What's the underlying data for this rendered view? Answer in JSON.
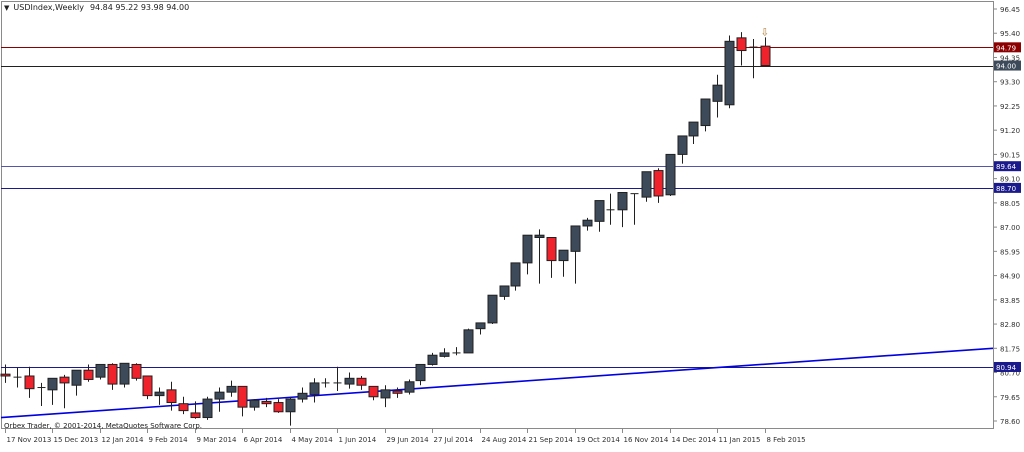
{
  "header": {
    "symbol": "USDIndex,Weekly",
    "ohlc": "94.84 95.22 93.98 94.00"
  },
  "footer": {
    "copyright": "Orbex Trader, © 2001-2014, MetaQuotes Software Corp."
  },
  "colors": {
    "bull_body": "#3d4a5a",
    "bear_body": "#f0232d",
    "wick": "#202020",
    "horizontal_blue": "#1a1a8c",
    "horizontal_red": "#8b0000",
    "horizontal_black": "#202020",
    "trendline": "#0000e0",
    "axis": "#8a8a8a"
  },
  "chart_data": {
    "type": "candlestick",
    "title": "USDIndex,Weekly",
    "subtitle": "94.84 95.22 93.98 94.00",
    "xlabel": "",
    "ylabel": "",
    "ylim": [
      78.6,
      96.45
    ],
    "grid": false,
    "y_ticks": [
      "96.45",
      "95.40",
      "94.35",
      "93.30",
      "92.25",
      "91.20",
      "90.15",
      "89.10",
      "88.05",
      "87.00",
      "85.95",
      "84.90",
      "83.85",
      "82.80",
      "81.75",
      "80.70",
      "79.65",
      "78.60"
    ],
    "x_ticks": [
      "17 Nov 2013",
      "15 Dec 2013",
      "12 Jan 2014",
      "9 Feb 2014",
      "9 Mar 2014",
      "6 Apr 2014",
      "4 May 2014",
      "1 Jun 2014",
      "29 Jun 2014",
      "27 Jul 2014",
      "24 Aug 2014",
      "21 Sep 2014",
      "19 Oct 2014",
      "16 Nov 2014",
      "14 Dec 2014",
      "11 Jan 2015",
      "8 Feb 2015"
    ],
    "price_labels": [
      {
        "value": "94.79",
        "color": "#8b0000"
      },
      {
        "value": "94.00",
        "color": "#3d4a5a"
      },
      {
        "value": "89.64",
        "color": "#1a1a8c"
      },
      {
        "value": "88.70",
        "color": "#1a1a8c"
      },
      {
        "value": "80.94",
        "color": "#1a1a8c"
      }
    ],
    "horizontal_lines": [
      {
        "value": 94.79,
        "color": "#8b0000"
      },
      {
        "value": 94.0,
        "color": "#202020"
      },
      {
        "value": 89.64,
        "color": "#5555aa"
      },
      {
        "value": 88.7,
        "color": "#1a1a8c"
      },
      {
        "value": 80.94,
        "color": "#1a1a8c"
      }
    ],
    "trendline": {
      "start": [
        0,
        78.75
      ],
      "end": [
        63.5,
        81.75
      ]
    },
    "arrow_marker": {
      "index": 64,
      "glyph": "⇩"
    },
    "candles": [
      {
        "o": 80.63,
        "h": 81.05,
        "l": 80.25,
        "c": 80.55
      },
      {
        "o": 80.5,
        "h": 80.9,
        "l": 80.05,
        "c": 80.5
      },
      {
        "o": 80.55,
        "h": 80.95,
        "l": 79.6,
        "c": 80.0
      },
      {
        "o": 80.05,
        "h": 80.25,
        "l": 79.25,
        "c": 80.05
      },
      {
        "o": 79.95,
        "h": 80.4,
        "l": 79.3,
        "c": 80.45
      },
      {
        "o": 80.5,
        "h": 80.6,
        "l": 79.15,
        "c": 80.25
      },
      {
        "o": 80.15,
        "h": 80.7,
        "l": 79.7,
        "c": 80.8
      },
      {
        "o": 80.8,
        "h": 81.05,
        "l": 80.3,
        "c": 80.4
      },
      {
        "o": 80.5,
        "h": 81.05,
        "l": 80.4,
        "c": 81.05
      },
      {
        "o": 81.05,
        "h": 81.1,
        "l": 79.95,
        "c": 80.2
      },
      {
        "o": 80.2,
        "h": 81.1,
        "l": 80.05,
        "c": 81.1
      },
      {
        "o": 81.05,
        "h": 81.1,
        "l": 80.35,
        "c": 80.45
      },
      {
        "o": 80.55,
        "h": 80.5,
        "l": 79.55,
        "c": 79.7
      },
      {
        "o": 79.7,
        "h": 80.05,
        "l": 79.3,
        "c": 79.85
      },
      {
        "o": 79.95,
        "h": 80.3,
        "l": 79.05,
        "c": 79.4
      },
      {
        "o": 79.35,
        "h": 79.65,
        "l": 78.9,
        "c": 79.05
      },
      {
        "o": 78.95,
        "h": 79.45,
        "l": 78.7,
        "c": 78.75
      },
      {
        "o": 78.75,
        "h": 79.65,
        "l": 78.65,
        "c": 79.55
      },
      {
        "o": 79.55,
        "h": 80.05,
        "l": 79.0,
        "c": 79.85
      },
      {
        "o": 79.85,
        "h": 80.35,
        "l": 79.65,
        "c": 80.1
      },
      {
        "o": 80.1,
        "h": 80.1,
        "l": 78.8,
        "c": 79.2
      },
      {
        "o": 79.2,
        "h": 79.55,
        "l": 79.05,
        "c": 79.5
      },
      {
        "o": 79.45,
        "h": 79.6,
        "l": 79.2,
        "c": 79.35
      },
      {
        "o": 79.4,
        "h": 79.55,
        "l": 78.95,
        "c": 79.0
      },
      {
        "o": 79.0,
        "h": 79.65,
        "l": 78.4,
        "c": 79.55
      },
      {
        "o": 79.55,
        "h": 80.05,
        "l": 79.4,
        "c": 79.8
      },
      {
        "o": 79.75,
        "h": 80.45,
        "l": 79.4,
        "c": 80.25
      },
      {
        "o": 80.25,
        "h": 80.45,
        "l": 80.05,
        "c": 80.25
      },
      {
        "o": 80.25,
        "h": 80.95,
        "l": 79.9,
        "c": 80.2
      },
      {
        "o": 80.2,
        "h": 80.7,
        "l": 80.0,
        "c": 80.45
      },
      {
        "o": 80.45,
        "h": 80.55,
        "l": 79.95,
        "c": 80.15
      },
      {
        "o": 80.1,
        "h": 80.1,
        "l": 79.5,
        "c": 79.65
      },
      {
        "o": 79.6,
        "h": 80.15,
        "l": 79.2,
        "c": 79.95
      },
      {
        "o": 79.9,
        "h": 80.05,
        "l": 79.6,
        "c": 79.8
      },
      {
        "o": 79.85,
        "h": 80.4,
        "l": 79.75,
        "c": 80.3
      },
      {
        "o": 80.35,
        "h": 81.05,
        "l": 80.15,
        "c": 81.05
      },
      {
        "o": 81.05,
        "h": 81.55,
        "l": 81.0,
        "c": 81.45
      },
      {
        "o": 81.4,
        "h": 81.75,
        "l": 81.35,
        "c": 81.55
      },
      {
        "o": 81.5,
        "h": 81.8,
        "l": 81.45,
        "c": 81.55
      },
      {
        "o": 81.55,
        "h": 82.6,
        "l": 81.55,
        "c": 82.55
      },
      {
        "o": 82.6,
        "h": 82.85,
        "l": 82.35,
        "c": 82.85
      },
      {
        "o": 82.85,
        "h": 84.0,
        "l": 82.8,
        "c": 84.05
      },
      {
        "o": 84.0,
        "h": 84.45,
        "l": 83.85,
        "c": 84.45
      },
      {
        "o": 84.45,
        "h": 85.45,
        "l": 84.25,
        "c": 85.45
      },
      {
        "o": 85.45,
        "h": 86.65,
        "l": 84.95,
        "c": 86.65
      },
      {
        "o": 86.55,
        "h": 86.9,
        "l": 84.55,
        "c": 86.65
      },
      {
        "o": 86.55,
        "h": 86.45,
        "l": 84.8,
        "c": 85.55
      },
      {
        "o": 85.55,
        "h": 86.0,
        "l": 84.85,
        "c": 86.0
      },
      {
        "o": 85.95,
        "h": 86.5,
        "l": 84.55,
        "c": 87.05
      },
      {
        "o": 87.05,
        "h": 87.4,
        "l": 86.85,
        "c": 87.3
      },
      {
        "o": 87.25,
        "h": 88.15,
        "l": 86.8,
        "c": 88.15
      },
      {
        "o": 87.75,
        "h": 88.45,
        "l": 87.1,
        "c": 87.75
      },
      {
        "o": 87.75,
        "h": 88.5,
        "l": 87.0,
        "c": 88.5
      },
      {
        "o": 88.45,
        "h": 88.45,
        "l": 87.1,
        "c": 88.4
      },
      {
        "o": 88.3,
        "h": 89.4,
        "l": 88.1,
        "c": 89.4
      },
      {
        "o": 89.45,
        "h": 89.55,
        "l": 88.05,
        "c": 88.35
      },
      {
        "o": 88.4,
        "h": 90.15,
        "l": 88.35,
        "c": 90.15
      },
      {
        "o": 90.15,
        "h": 90.95,
        "l": 89.75,
        "c": 90.95
      },
      {
        "o": 90.95,
        "h": 91.45,
        "l": 90.6,
        "c": 91.55
      },
      {
        "o": 91.4,
        "h": 92.55,
        "l": 91.15,
        "c": 92.55
      },
      {
        "o": 92.45,
        "h": 93.6,
        "l": 91.75,
        "c": 93.15
      },
      {
        "o": 92.3,
        "h": 95.3,
        "l": 92.15,
        "c": 95.05
      },
      {
        "o": 95.2,
        "h": 95.45,
        "l": 94.0,
        "c": 94.65
      },
      {
        "o": 94.75,
        "h": 95.15,
        "l": 93.45,
        "c": 94.8
      },
      {
        "o": 94.84,
        "h": 95.22,
        "l": 93.98,
        "c": 94.0
      }
    ]
  }
}
